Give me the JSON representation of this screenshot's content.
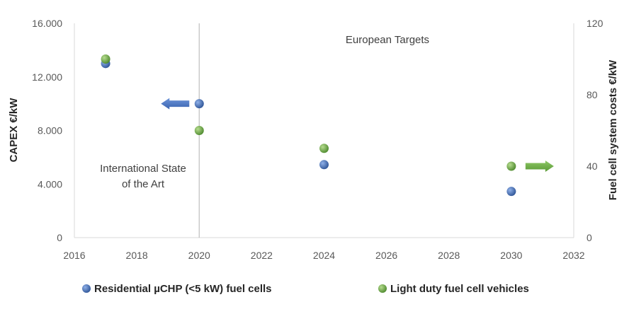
{
  "chart_data": {
    "type": "scatter",
    "title": "",
    "xlabel": "",
    "ylabel": "CAPEX €/kW",
    "y2label": "Fuel cell system costs €/kW",
    "xlim": [
      2016,
      2032
    ],
    "ylim": [
      0,
      16000
    ],
    "y2lim": [
      0,
      120
    ],
    "x_ticks": [
      "2016",
      "2018",
      "2020",
      "2022",
      "2024",
      "2026",
      "2028",
      "2030",
      "2032"
    ],
    "y_ticks": [
      "0",
      "4.000",
      "8.000",
      "12.000",
      "16.000"
    ],
    "y2_ticks": [
      "0",
      "40",
      "80",
      "120"
    ],
    "grid": false,
    "legend_position": "bottom",
    "series": [
      {
        "name": "Residential µCHP (<5 kW) fuel cells",
        "axis": "left",
        "color": "#4472c4",
        "x": [
          2017,
          2020,
          2024,
          2030
        ],
        "y": [
          13000,
          10000,
          5450,
          3450
        ]
      },
      {
        "name": "Light duty fuel cell vehicles",
        "axis": "right",
        "color": "#70ad47",
        "x": [
          2017,
          2020,
          2024,
          2030
        ],
        "y": [
          100,
          60,
          50,
          40
        ]
      }
    ],
    "divider_x": 2020,
    "annotations": {
      "left_region": [
        "International State",
        "of the Art"
      ],
      "right_region": "European Targets"
    },
    "arrows": [
      {
        "series": "Residential µCHP (<5 kW) fuel cells",
        "direction": "left",
        "x": 2020,
        "y": 10000
      },
      {
        "series": "Light duty fuel cell vehicles",
        "direction": "right",
        "x": 2030,
        "y": 40
      }
    ]
  }
}
